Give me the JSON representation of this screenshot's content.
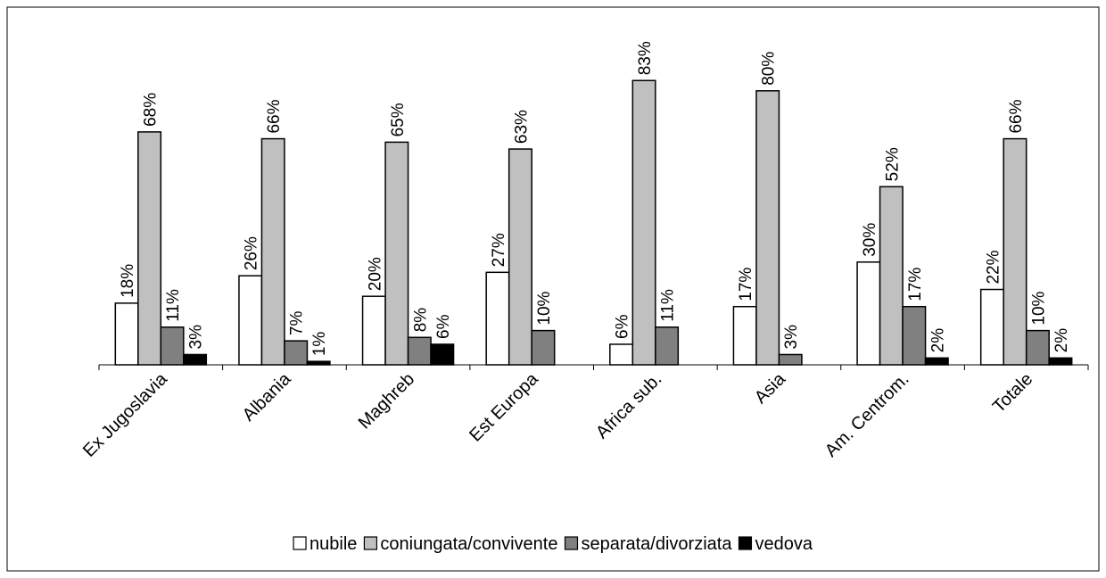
{
  "chart_data": {
    "type": "bar",
    "categories": [
      "Ex Jugoslavia",
      "Albania",
      "Maghreb",
      "Est Europa",
      "Africa sub.",
      "Asia",
      "Am. Centrom.",
      "Totale"
    ],
    "ylim": [
      0,
      100
    ],
    "series": [
      {
        "name": "nubile",
        "color": "#ffffff",
        "values": [
          18,
          26,
          20,
          27,
          6,
          17,
          30,
          22
        ],
        "value_labels": [
          "18%",
          "26%",
          "20%",
          "27%",
          "6%",
          "17%",
          "30%",
          "22%"
        ]
      },
      {
        "name": "coniungata/convivente",
        "color": "#c0c0c0",
        "values": [
          68,
          66,
          65,
          63,
          83,
          80,
          52,
          66
        ],
        "value_labels": [
          "68%",
          "66%",
          "65%",
          "63%",
          "83%",
          "80%",
          "52%",
          "66%"
        ]
      },
      {
        "name": "separata/divorziata",
        "color": "#808080",
        "values": [
          11,
          7,
          8,
          10,
          11,
          3,
          17,
          10
        ],
        "value_labels": [
          "11%",
          "7%",
          "8%",
          "10%",
          "11%",
          "3%",
          "17%",
          "10%"
        ]
      },
      {
        "name": "vedova",
        "color": "#000000",
        "values": [
          3,
          1,
          6,
          null,
          null,
          null,
          2,
          2
        ],
        "value_labels": [
          "3%",
          "1%",
          "6%",
          null,
          null,
          null,
          "2%",
          "2%"
        ]
      }
    ],
    "legend": "bottom"
  }
}
